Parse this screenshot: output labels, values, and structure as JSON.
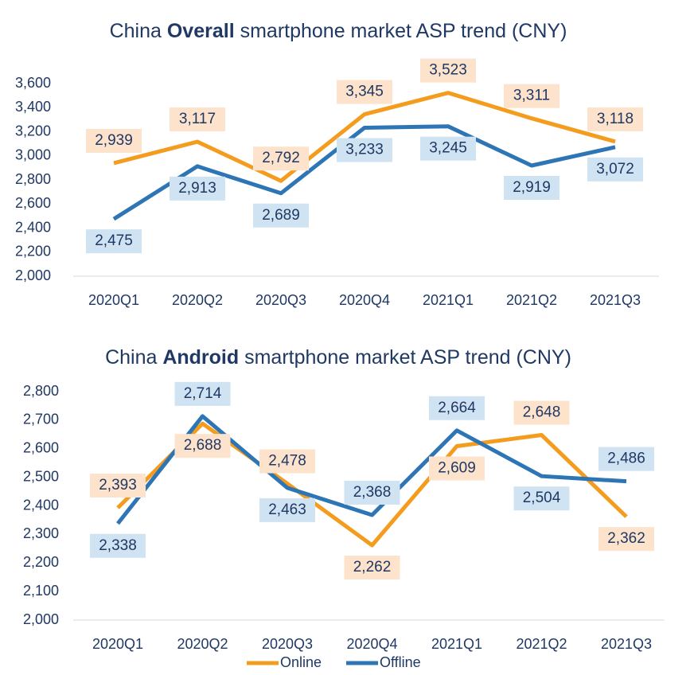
{
  "chart_data": [
    {
      "type": "line",
      "title": [
        "China ",
        "Overall",
        " smartphone market ASP trend (CNY)"
      ],
      "categories": [
        "2020Q1",
        "2020Q2",
        "2020Q3",
        "2020Q4",
        "2021Q1",
        "2021Q2",
        "2021Q3"
      ],
      "series": [
        {
          "name": "Online",
          "color": "#f39c1e",
          "values": [
            2939,
            3117,
            2792,
            3345,
            3523,
            3311,
            3118
          ],
          "value_labels": [
            "2,939",
            "3,117",
            "2,792",
            "3,345",
            "3,523",
            "3,311",
            "3,118"
          ]
        },
        {
          "name": "Offline",
          "color": "#2e75b6",
          "values": [
            2475,
            2913,
            2689,
            3233,
            3245,
            2919,
            3072
          ],
          "value_labels": [
            "2,475",
            "2,913",
            "2,689",
            "3,233",
            "3,245",
            "2,919",
            "3,072"
          ]
        }
      ],
      "ylim": [
        2000,
        3600
      ],
      "yticks": [
        {
          "value": 2000,
          "label": "2,000"
        },
        {
          "value": 2200,
          "label": "2,200"
        },
        {
          "value": 2400,
          "label": "2,400"
        },
        {
          "value": 2600,
          "label": "2,600"
        },
        {
          "value": 2800,
          "label": "2,800"
        },
        {
          "value": 3000,
          "label": "3,000"
        },
        {
          "value": 3200,
          "label": "3,200"
        },
        {
          "value": 3400,
          "label": "3,400"
        },
        {
          "value": 3600,
          "label": "3,600"
        }
      ]
    },
    {
      "type": "line",
      "title": [
        "China ",
        "Android",
        " smartphone market ASP trend (CNY)"
      ],
      "categories": [
        "2020Q1",
        "2020Q2",
        "2020Q3",
        "2020Q4",
        "2021Q1",
        "2021Q2",
        "2021Q3"
      ],
      "series": [
        {
          "name": "Online",
          "color": "#f39c1e",
          "values": [
            2393,
            2688,
            2478,
            2262,
            2609,
            2648,
            2362
          ],
          "value_labels": [
            "2,393",
            "2,688",
            "2,478",
            "2,262",
            "2,609",
            "2,648",
            "2,362"
          ]
        },
        {
          "name": "Offline",
          "color": "#2e75b6",
          "values": [
            2338,
            2714,
            2463,
            2368,
            2664,
            2504,
            2486
          ],
          "value_labels": [
            "2,338",
            "2,714",
            "2,463",
            "2,368",
            "2,664",
            "2,504",
            "2,486"
          ]
        }
      ],
      "ylim": [
        2000,
        2800
      ],
      "yticks": [
        {
          "value": 2000,
          "label": "2,000"
        },
        {
          "value": 2100,
          "label": "2,100"
        },
        {
          "value": 2200,
          "label": "2,200"
        },
        {
          "value": 2300,
          "label": "2,300"
        },
        {
          "value": 2400,
          "label": "2,400"
        },
        {
          "value": 2500,
          "label": "2,500"
        },
        {
          "value": 2600,
          "label": "2,600"
        },
        {
          "value": 2700,
          "label": "2,700"
        },
        {
          "value": 2800,
          "label": "2,800"
        }
      ]
    }
  ]
}
